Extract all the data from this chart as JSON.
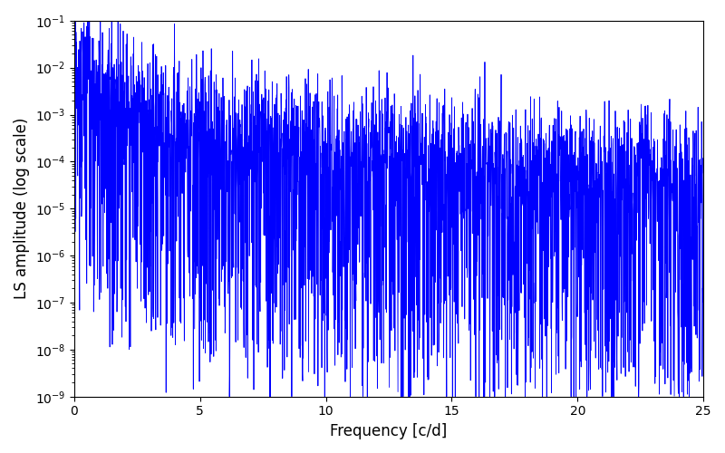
{
  "title": "",
  "xlabel": "Frequency [c/d]",
  "ylabel": "LS amplitude (log scale)",
  "xlim": [
    0,
    25
  ],
  "ylim_log": [
    1e-09,
    0.1
  ],
  "line_color": "#0000FF",
  "line_width": 0.6,
  "yscale": "log",
  "figsize": [
    8.0,
    5.0
  ],
  "dpi": 100,
  "seed": 42,
  "n_points": 3000,
  "freq_max": 25.0,
  "background_color": "#ffffff"
}
